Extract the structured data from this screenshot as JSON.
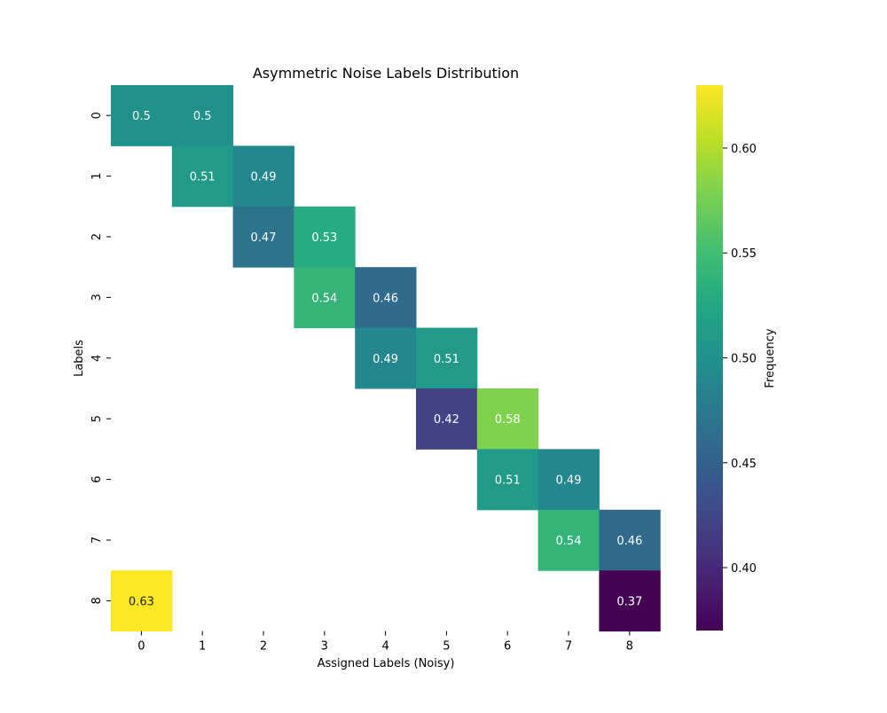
{
  "chart_data": {
    "type": "heatmap",
    "title": "Asymmetric Noise Labels Distribution",
    "xlabel": "Assigned Labels (Noisy)",
    "ylabel": "Labels",
    "x_categories": [
      "0",
      "1",
      "2",
      "3",
      "4",
      "5",
      "6",
      "7",
      "8"
    ],
    "y_categories": [
      "0",
      "1",
      "2",
      "3",
      "4",
      "5",
      "6",
      "7",
      "8"
    ],
    "cells": [
      {
        "row": 0,
        "col": 0,
        "value": 0.5,
        "label": "0.5"
      },
      {
        "row": 0,
        "col": 1,
        "value": 0.5,
        "label": "0.5"
      },
      {
        "row": 1,
        "col": 1,
        "value": 0.51,
        "label": "0.51"
      },
      {
        "row": 1,
        "col": 2,
        "value": 0.49,
        "label": "0.49"
      },
      {
        "row": 2,
        "col": 2,
        "value": 0.47,
        "label": "0.47"
      },
      {
        "row": 2,
        "col": 3,
        "value": 0.53,
        "label": "0.53"
      },
      {
        "row": 3,
        "col": 3,
        "value": 0.54,
        "label": "0.54"
      },
      {
        "row": 3,
        "col": 4,
        "value": 0.46,
        "label": "0.46"
      },
      {
        "row": 4,
        "col": 4,
        "value": 0.49,
        "label": "0.49"
      },
      {
        "row": 4,
        "col": 5,
        "value": 0.51,
        "label": "0.51"
      },
      {
        "row": 5,
        "col": 5,
        "value": 0.42,
        "label": "0.42"
      },
      {
        "row": 5,
        "col": 6,
        "value": 0.58,
        "label": "0.58"
      },
      {
        "row": 6,
        "col": 6,
        "value": 0.51,
        "label": "0.51"
      },
      {
        "row": 6,
        "col": 7,
        "value": 0.49,
        "label": "0.49"
      },
      {
        "row": 7,
        "col": 7,
        "value": 0.54,
        "label": "0.54"
      },
      {
        "row": 7,
        "col": 8,
        "value": 0.46,
        "label": "0.46"
      },
      {
        "row": 8,
        "col": 0,
        "value": 0.63,
        "label": "0.63"
      },
      {
        "row": 8,
        "col": 8,
        "value": 0.37,
        "label": "0.37"
      }
    ],
    "colorbar": {
      "label": "Frequency",
      "colormap": "viridis",
      "range": [
        0.37,
        0.63
      ],
      "ticks": [
        0.4,
        0.45,
        0.5,
        0.55,
        0.6
      ],
      "tick_labels": [
        "0.40",
        "0.45",
        "0.50",
        "0.55",
        "0.60"
      ]
    },
    "grid": false
  }
}
